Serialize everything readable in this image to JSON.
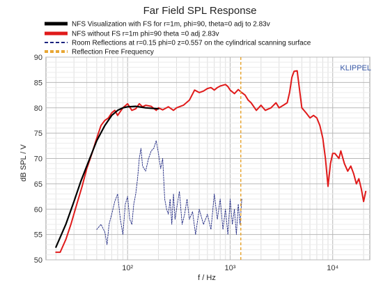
{
  "chart_data": {
    "type": "line",
    "title": "Far Field SPL Response",
    "xlabel": "f / Hz",
    "ylabel": "dB SPL / V",
    "xscale": "log",
    "xlim": [
      16,
      23000
    ],
    "ylim": [
      50,
      90
    ],
    "yticks": [
      50,
      55,
      60,
      65,
      70,
      75,
      80,
      85,
      90
    ],
    "xticks": [
      {
        "value": 100,
        "label": "10²"
      },
      {
        "value": 1000,
        "label": "10³"
      },
      {
        "value": 10000,
        "label": "10⁴"
      }
    ],
    "grid": true,
    "legend_position": "top-left, above plot",
    "watermark": "KLIPPEL",
    "series": [
      {
        "name": "NFS Visualization with FS for r=1m, phi=90, theta=0 adj to 2.83v",
        "color": "#000000",
        "style": "solid",
        "width": 2.2,
        "x": [
          20,
          25,
          30,
          35,
          40,
          50,
          60,
          70,
          80,
          90,
          100,
          120,
          150,
          200
        ],
        "y": [
          52.5,
          57,
          61.5,
          65.5,
          68.5,
          73.5,
          76.5,
          78.5,
          79.5,
          80,
          80.2,
          80.3,
          80,
          79.8
        ]
      },
      {
        "name": "NFS without FS r=1m phi=90 theta =0 adj 2.83v",
        "color": "#e01a1a",
        "style": "solid",
        "width": 2.0,
        "x": [
          20,
          22,
          25,
          28,
          32,
          36,
          40,
          45,
          50,
          55,
          60,
          65,
          70,
          75,
          80,
          90,
          100,
          110,
          120,
          130,
          140,
          150,
          170,
          190,
          200,
          220,
          250,
          280,
          300,
          350,
          400,
          450,
          500,
          550,
          600,
          650,
          700,
          750,
          800,
          900,
          950,
          1000,
          1100,
          1200,
          1300,
          1400,
          1500,
          1600,
          1800,
          2000,
          2200,
          2500,
          2800,
          3000,
          3300,
          3600,
          3800,
          4000,
          4200,
          4500,
          5000,
          5500,
          6000,
          6500,
          7000,
          7500,
          8000,
          8500,
          9000,
          9500,
          10000,
          10500,
          11000,
          11500,
          12000,
          13000,
          14000,
          15000,
          16000,
          17000,
          18000,
          19000,
          20000,
          21000
        ],
        "y": [
          51.5,
          51.5,
          54,
          57,
          61,
          64.5,
          68,
          71,
          74,
          76.5,
          77.5,
          78,
          79,
          79.5,
          78.5,
          80,
          80.8,
          79.5,
          79.8,
          80.8,
          80.2,
          80.5,
          80.3,
          79.5,
          80,
          79.6,
          80.2,
          79.5,
          80,
          80.5,
          81.5,
          83.5,
          83,
          83.3,
          83.8,
          84,
          83.5,
          84,
          84.3,
          84.6,
          84.2,
          83.5,
          82.8,
          83.6,
          83,
          82.5,
          81.5,
          81,
          79.5,
          80.5,
          79.5,
          80,
          81,
          80,
          80.5,
          81,
          83,
          86,
          87.2,
          87.3,
          80,
          79,
          78,
          78.5,
          78,
          76.5,
          74,
          70,
          64.5,
          69,
          71,
          71,
          70.5,
          70,
          71.5,
          69,
          67.5,
          68.5,
          67,
          65,
          66,
          64,
          61.5,
          63.5
        ]
      },
      {
        "name": "Room Reflections at r=0.15 phi=0 z=0.557 on the cylindrical scanning surface",
        "color": "#1a237e",
        "style": "dashed",
        "width": 0.9,
        "x": [
          50,
          55,
          60,
          63,
          66,
          70,
          75,
          80,
          85,
          90,
          95,
          100,
          105,
          110,
          115,
          120,
          125,
          130,
          135,
          140,
          150,
          160,
          170,
          180,
          190,
          200,
          210,
          220,
          230,
          240,
          250,
          260,
          270,
          280,
          290,
          300,
          320,
          340,
          360,
          380,
          400,
          430,
          460,
          500,
          550,
          600,
          650,
          700,
          750,
          800,
          850,
          900,
          950,
          1000,
          1050,
          1100,
          1150,
          1200,
          1250,
          1300
        ],
        "y": [
          56,
          57,
          55.5,
          53,
          57,
          59,
          61.5,
          63,
          58,
          55,
          61,
          62.5,
          58,
          57,
          61,
          63,
          66,
          70,
          72,
          68.5,
          67.5,
          70,
          71.5,
          72,
          73.5,
          71,
          68,
          70,
          62,
          60,
          59,
          62,
          57,
          63,
          58,
          60,
          63.5,
          57,
          59,
          62,
          58,
          59.5,
          55,
          60,
          57,
          59,
          56,
          63,
          58,
          62,
          56,
          60,
          55,
          62,
          57,
          60,
          55,
          61,
          57,
          62
        ]
      },
      {
        "name": "Reflection Free Frequency",
        "color": "#e8a735",
        "style": "dashed",
        "width": 1.5,
        "vline_x": 1270
      }
    ]
  }
}
